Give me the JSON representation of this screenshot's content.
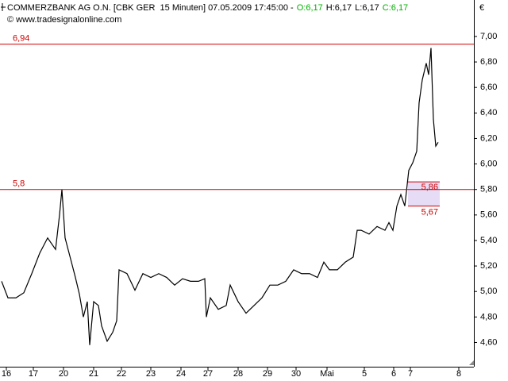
{
  "chart_data": {
    "type": "line",
    "title": "COMMERZBANK AG O.N. [CBK GER  15 Minuten] 07.05.2009 17:45:00 -",
    "ohlc": [
      {
        "text": "O:6,17",
        "color": "#00b000"
      },
      {
        "text": "H:6,17",
        "color": "#000000"
      },
      {
        "text": "L:6,17",
        "color": "#000000"
      },
      {
        "text": "C:6,17",
        "color": "#00b000"
      }
    ],
    "subtitle": "© www.tradesignalonline.com",
    "y_unit": "€",
    "x": [
      0.5,
      2.5,
      5,
      7.5,
      10,
      12.5,
      15,
      17.5,
      18.75,
      19.5,
      20.5,
      22.5,
      23.75,
      25,
      26.25,
      27.5,
      28.25,
      29.5,
      31,
      32,
      33.75,
      35.5,
      36.75,
      37.5,
      40,
      42.5,
      45,
      47.5,
      50,
      52.5,
      55,
      57.5,
      60,
      62.5,
      64.5,
      65,
      66.25,
      68.75,
      71.25,
      72.5,
      75,
      77.5,
      80,
      82.5,
      85,
      87.5,
      90,
      92.5,
      95,
      97.5,
      100,
      102,
      103.75,
      106.25,
      108.75,
      111.25,
      112.5,
      113.75,
      116.25,
      118.75,
      121.25,
      122.5,
      123.75,
      125,
      126.25,
      127.5,
      128.75,
      130,
      131.25,
      132,
      133,
      134.25,
      135,
      135.75,
      136.5,
      137.25,
      138
    ],
    "series": [
      {
        "name": "CBK",
        "color": "#000000",
        "values": [
          5.08,
          4.95,
          4.95,
          4.99,
          5.14,
          5.3,
          5.42,
          5.33,
          5.6,
          5.8,
          5.42,
          5.23,
          5.11,
          4.98,
          4.8,
          4.92,
          4.58,
          4.92,
          4.89,
          4.73,
          4.61,
          4.68,
          4.77,
          5.17,
          5.14,
          5.01,
          5.14,
          5.11,
          5.14,
          5.11,
          5.05,
          5.1,
          5.08,
          5.08,
          5.1,
          4.8,
          4.95,
          4.86,
          4.89,
          5.05,
          4.92,
          4.83,
          4.89,
          4.95,
          5.05,
          5.05,
          5.08,
          5.17,
          5.14,
          5.14,
          5.11,
          5.23,
          5.17,
          5.17,
          5.23,
          5.27,
          5.48,
          5.48,
          5.45,
          5.51,
          5.48,
          5.54,
          5.48,
          5.67,
          5.76,
          5.67,
          5.95,
          6.01,
          6.1,
          6.48,
          6.66,
          6.79,
          6.7,
          6.91,
          6.35,
          6.14,
          6.17
        ]
      }
    ],
    "xlim": [
      0,
      149.25
    ],
    "ylim": [
      4.41,
      7.286
    ],
    "yticks": [
      {
        "value": 4.6,
        "label": "4,60"
      },
      {
        "value": 4.8,
        "label": "4,80"
      },
      {
        "value": 5.0,
        "label": "5,00"
      },
      {
        "value": 5.2,
        "label": "5,20"
      },
      {
        "value": 5.4,
        "label": "5,40"
      },
      {
        "value": 5.6,
        "label": "5,60"
      },
      {
        "value": 5.8,
        "label": "5,80"
      },
      {
        "value": 6.0,
        "label": "6,00"
      },
      {
        "value": 6.2,
        "label": "6,20"
      },
      {
        "value": 6.4,
        "label": "6,40"
      },
      {
        "value": 6.6,
        "label": "6,60"
      },
      {
        "value": 6.8,
        "label": "6,80"
      },
      {
        "value": 7.0,
        "label": "7,00"
      }
    ],
    "xticks": [
      {
        "value": 2,
        "label": "16"
      },
      {
        "value": 10.5,
        "label": "17"
      },
      {
        "value": 20,
        "label": "20"
      },
      {
        "value": 29.5,
        "label": "21"
      },
      {
        "value": 38.25,
        "label": "22"
      },
      {
        "value": 47.5,
        "label": "23"
      },
      {
        "value": 57,
        "label": "24"
      },
      {
        "value": 65.5,
        "label": "27"
      },
      {
        "value": 75,
        "label": "28"
      },
      {
        "value": 84.25,
        "label": "29"
      },
      {
        "value": 93.25,
        "label": "30"
      },
      {
        "value": 103,
        "label": "Mai"
      },
      {
        "value": 114.75,
        "label": "5"
      },
      {
        "value": 124,
        "label": "6"
      },
      {
        "value": 129.25,
        "label": "7"
      },
      {
        "value": 144.5,
        "label": "8"
      }
    ],
    "hlines": [
      {
        "value": 6.94,
        "label": "6,94",
        "color": "#d00000"
      },
      {
        "value": 5.8,
        "label": "5,8",
        "color": "#d00000"
      }
    ],
    "zone": {
      "x": [
        128.5,
        138.5
      ],
      "top": {
        "value": 5.86,
        "label": "5,86"
      },
      "bottom": {
        "value": 5.67,
        "label": "5,67"
      },
      "color": "#e6dcf5",
      "line_color": "#d00000"
    }
  }
}
